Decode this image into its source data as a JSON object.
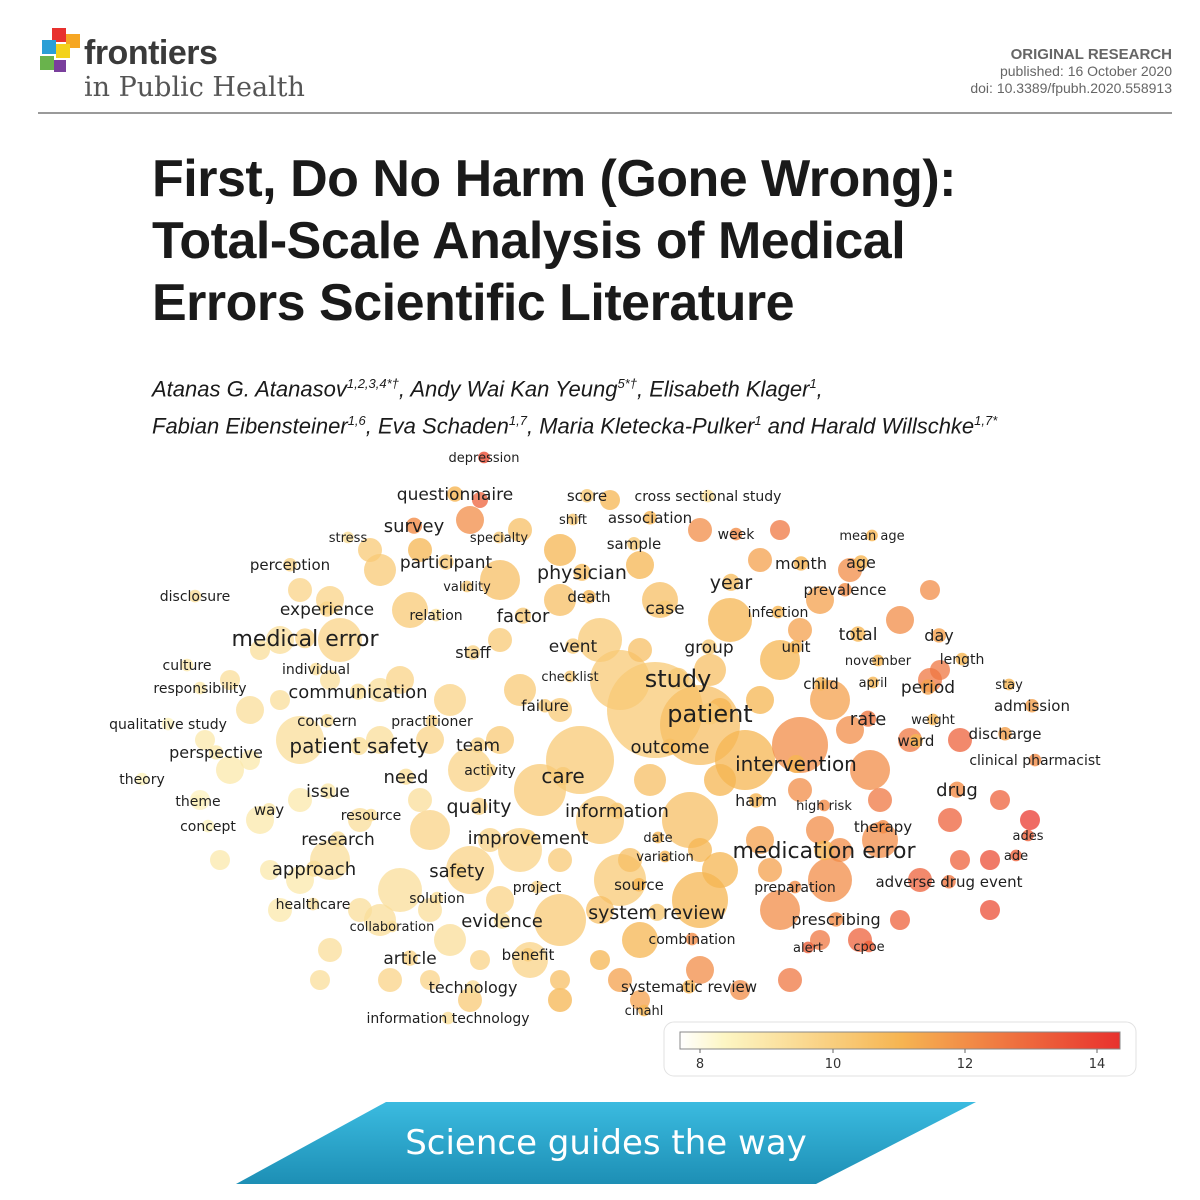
{
  "journal": {
    "name_line1": "frontiers",
    "name_line2": "in Public Health"
  },
  "article": {
    "type": "ORIGINAL RESEARCH",
    "published": "published: 16 October 2020",
    "doi": "doi: 10.3389/fpubh.2020.558913",
    "title_lines": [
      "First, Do No Harm (Gone Wrong):",
      "Total-Scale Analysis of Medical",
      "Errors Scientific Literature"
    ],
    "authors_line1": [
      {
        "name": "Atanas G. Atanasov",
        "sup": "1,2,3,4*†",
        "sep": ", "
      },
      {
        "name": "Andy Wai Kan Yeung",
        "sup": "5*†",
        "sep": ", "
      },
      {
        "name": "Elisabeth Klager",
        "sup": "1",
        "sep": ","
      }
    ],
    "authors_line2": [
      {
        "name": "Fabian Eibensteiner",
        "sup": "1,6",
        "sep": ", "
      },
      {
        "name": "Eva Schaden",
        "sup": "1,7",
        "sep": ", "
      },
      {
        "name": "Maria Kletecka-Pulker",
        "sup": "1",
        "sep": " and "
      },
      {
        "name": "Harald Willschke",
        "sup": "1,7*",
        "sep": ""
      }
    ]
  },
  "colors": {
    "low": "#fdf6c4",
    "mid": "#f6b552",
    "high": "#e8312e",
    "banner": "#2aa8cc",
    "rule": "#9a9a9a"
  },
  "term_map": {
    "colorbar_ticks": [
      "8",
      "10",
      "12",
      "14"
    ],
    "terms": [
      {
        "t": "depression",
        "v": 13.5,
        "s": 13
      },
      {
        "t": "questionnaire",
        "v": 11,
        "s": 17
      },
      {
        "t": "score",
        "v": 10,
        "s": 15
      },
      {
        "t": "cross sectional study",
        "v": 9,
        "s": 14
      },
      {
        "t": "shift",
        "v": 10,
        "s": 13
      },
      {
        "t": "association",
        "v": 11,
        "s": 15
      },
      {
        "t": "survey",
        "v": 12,
        "s": 18
      },
      {
        "t": "stress",
        "v": 9,
        "s": 13
      },
      {
        "t": "specialty",
        "v": 10,
        "s": 13
      },
      {
        "t": "sample",
        "v": 10,
        "s": 15
      },
      {
        "t": "week",
        "v": 12,
        "s": 14
      },
      {
        "t": "mean age",
        "v": 11,
        "s": 13
      },
      {
        "t": "perception",
        "v": 9.5,
        "s": 15
      },
      {
        "t": "participant",
        "v": 10,
        "s": 17
      },
      {
        "t": "physician",
        "v": 10.5,
        "s": 19
      },
      {
        "t": "month",
        "v": 11,
        "s": 16
      },
      {
        "t": "age",
        "v": 11,
        "s": 16
      },
      {
        "t": "validity",
        "v": 10,
        "s": 13
      },
      {
        "t": "year",
        "v": 10.5,
        "s": 19
      },
      {
        "t": "prevalence",
        "v": 12,
        "s": 15
      },
      {
        "t": "disclosure",
        "v": 9,
        "s": 14
      },
      {
        "t": "death",
        "v": 11,
        "s": 15
      },
      {
        "t": "experience",
        "v": 9.5,
        "s": 17
      },
      {
        "t": "relation",
        "v": 9,
        "s": 14
      },
      {
        "t": "factor",
        "v": 10,
        "s": 18
      },
      {
        "t": "case",
        "v": 10,
        "s": 17
      },
      {
        "t": "infection",
        "v": 11,
        "s": 14
      },
      {
        "t": "medical error",
        "v": 9.5,
        "s": 22
      },
      {
        "t": "total",
        "v": 11,
        "s": 17
      },
      {
        "t": "day",
        "v": 11.5,
        "s": 16
      },
      {
        "t": "event",
        "v": 10,
        "s": 17
      },
      {
        "t": "group",
        "v": 10,
        "s": 17
      },
      {
        "t": "unit",
        "v": 11,
        "s": 15
      },
      {
        "t": "culture",
        "v": 8.5,
        "s": 14
      },
      {
        "t": "staff",
        "v": 9.5,
        "s": 16
      },
      {
        "t": "november",
        "v": 11,
        "s": 13
      },
      {
        "t": "length",
        "v": 11,
        "s": 14
      },
      {
        "t": "individual",
        "v": 9,
        "s": 14
      },
      {
        "t": "checklist",
        "v": 10,
        "s": 13
      },
      {
        "t": "study",
        "v": 10,
        "s": 24
      },
      {
        "t": "child",
        "v": 11,
        "s": 15
      },
      {
        "t": "april",
        "v": 11,
        "s": 13
      },
      {
        "t": "period",
        "v": 11.5,
        "s": 17
      },
      {
        "t": "stay",
        "v": 11,
        "s": 13
      },
      {
        "t": "responsibility",
        "v": 8.5,
        "s": 14
      },
      {
        "t": "communication",
        "v": 9,
        "s": 18
      },
      {
        "t": "failure",
        "v": 10,
        "s": 15
      },
      {
        "t": "admission",
        "v": 11.5,
        "s": 15
      },
      {
        "t": "patient",
        "v": 10,
        "s": 24
      },
      {
        "t": "rate",
        "v": 12.5,
        "s": 18
      },
      {
        "t": "weight",
        "v": 11,
        "s": 13
      },
      {
        "t": "qualitative study",
        "v": 8,
        "s": 14
      },
      {
        "t": "concern",
        "v": 9,
        "s": 15
      },
      {
        "t": "practitioner",
        "v": 9.5,
        "s": 14
      },
      {
        "t": "discharge",
        "v": 11.5,
        "s": 15
      },
      {
        "t": "ward",
        "v": 11,
        "s": 15
      },
      {
        "t": "perspective",
        "v": 8.5,
        "s": 16
      },
      {
        "t": "patient safety",
        "v": 9,
        "s": 20
      },
      {
        "t": "team",
        "v": 9.5,
        "s": 17
      },
      {
        "t": "outcome",
        "v": 10.5,
        "s": 18
      },
      {
        "t": "clinical pharmacist",
        "v": 12,
        "s": 14
      },
      {
        "t": "intervention",
        "v": 11,
        "s": 20
      },
      {
        "t": "activity",
        "v": 9.5,
        "s": 14
      },
      {
        "t": "theory",
        "v": 8,
        "s": 14
      },
      {
        "t": "need",
        "v": 9,
        "s": 18
      },
      {
        "t": "care",
        "v": 10,
        "s": 20
      },
      {
        "t": "issue",
        "v": 8.5,
        "s": 17
      },
      {
        "t": "drug",
        "v": 12,
        "s": 18
      },
      {
        "t": "theme",
        "v": 8,
        "s": 14
      },
      {
        "t": "way",
        "v": 8.5,
        "s": 15
      },
      {
        "t": "harm",
        "v": 11,
        "s": 16
      },
      {
        "t": "high risk",
        "v": 12,
        "s": 13
      },
      {
        "t": "resource",
        "v": 9,
        "s": 14
      },
      {
        "t": "quality",
        "v": 9.5,
        "s": 19
      },
      {
        "t": "information",
        "v": 10,
        "s": 18
      },
      {
        "t": "concept",
        "v": 8,
        "s": 14
      },
      {
        "t": "therapy",
        "v": 12,
        "s": 15
      },
      {
        "t": "research",
        "v": 9,
        "s": 17
      },
      {
        "t": "improvement",
        "v": 9.5,
        "s": 18
      },
      {
        "t": "date",
        "v": 11,
        "s": 13
      },
      {
        "t": "ades",
        "v": 13,
        "s": 13
      },
      {
        "t": "medication error",
        "v": 11,
        "s": 22
      },
      {
        "t": "variation",
        "v": 11,
        "s": 13
      },
      {
        "t": "ade",
        "v": 13,
        "s": 13
      },
      {
        "t": "approach",
        "v": 9,
        "s": 18
      },
      {
        "t": "safety",
        "v": 9.5,
        "s": 18
      },
      {
        "t": "project",
        "v": 9.5,
        "s": 14
      },
      {
        "t": "source",
        "v": 11,
        "s": 15
      },
      {
        "t": "preparation",
        "v": 12,
        "s": 14
      },
      {
        "t": "adverse drug event",
        "v": 12.5,
        "s": 15
      },
      {
        "t": "healthcare",
        "v": 9,
        "s": 14
      },
      {
        "t": "solution",
        "v": 9,
        "s": 14
      },
      {
        "t": "evidence",
        "v": 9,
        "s": 18
      },
      {
        "t": "system review",
        "v": 10,
        "s": 19
      },
      {
        "t": "collaboration",
        "v": 9,
        "s": 13
      },
      {
        "t": "prescribing",
        "v": 12,
        "s": 16
      },
      {
        "t": "combination",
        "v": 12,
        "s": 14
      },
      {
        "t": "alert",
        "v": 13,
        "s": 13
      },
      {
        "t": "cpoe",
        "v": 13,
        "s": 13
      },
      {
        "t": "article",
        "v": 9.5,
        "s": 17
      },
      {
        "t": "benefit",
        "v": 10,
        "s": 15
      },
      {
        "t": "technology",
        "v": 9,
        "s": 16
      },
      {
        "t": "systematic review",
        "v": 11,
        "s": 15
      },
      {
        "t": "cinahl",
        "v": 11,
        "s": 13
      },
      {
        "t": "information technology",
        "v": 9,
        "s": 14
      }
    ]
  },
  "banner": {
    "slogan": "Science guides the way"
  }
}
